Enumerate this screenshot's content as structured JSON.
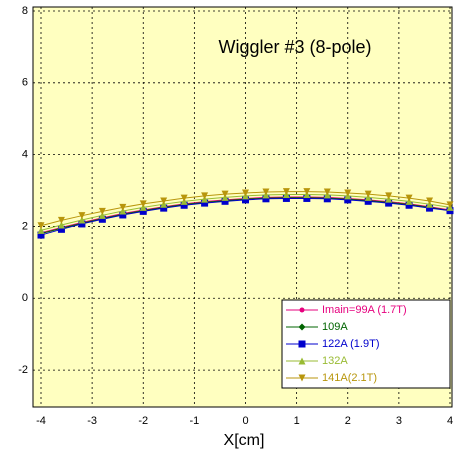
{
  "chart_data": {
    "type": "line",
    "title": "Wiggler #3 (8-pole)",
    "x_label": "X[cm]",
    "x": [
      -4,
      -3.6,
      -3.2,
      -2.8,
      -2.4,
      -2,
      -1.6,
      -1.2,
      -0.8,
      -0.4,
      0,
      0.4,
      0.8,
      1.2,
      1.6,
      2,
      2.4,
      2.8,
      3.2,
      3.6,
      4
    ],
    "xlim": [
      -4,
      4
    ],
    "xticks": [
      -4,
      -3,
      -2,
      -1,
      0,
      1,
      2,
      3,
      4
    ],
    "ylim": [
      -3,
      8
    ],
    "yticks": [
      -2,
      0,
      2,
      4,
      6,
      8
    ],
    "grid": true,
    "legend": "lower right",
    "series": [
      {
        "name": "Imain=99A (1.7T)",
        "color": "#e6007e",
        "marker": "circle",
        "values": [
          1.82,
          1.97,
          2.11,
          2.24,
          2.36,
          2.46,
          2.55,
          2.63,
          2.69,
          2.74,
          2.78,
          2.81,
          2.82,
          2.82,
          2.81,
          2.78,
          2.74,
          2.69,
          2.63,
          2.55,
          2.46
        ]
      },
      {
        "name": "109A",
        "color": "#006400",
        "marker": "diamond",
        "values": [
          1.8,
          1.95,
          2.09,
          2.22,
          2.34,
          2.44,
          2.53,
          2.61,
          2.67,
          2.72,
          2.76,
          2.79,
          2.8,
          2.8,
          2.79,
          2.76,
          2.72,
          2.67,
          2.61,
          2.53,
          2.44
        ]
      },
      {
        "name": "122A (1.9T)",
        "color": "#0000cc",
        "marker": "square",
        "values": [
          1.76,
          1.92,
          2.07,
          2.2,
          2.32,
          2.42,
          2.51,
          2.59,
          2.65,
          2.7,
          2.74,
          2.77,
          2.78,
          2.78,
          2.77,
          2.74,
          2.7,
          2.65,
          2.59,
          2.51,
          2.44
        ]
      },
      {
        "name": "132A",
        "color": "#99bb33",
        "marker": "triangle-up",
        "values": [
          1.89,
          2.04,
          2.18,
          2.31,
          2.43,
          2.53,
          2.62,
          2.7,
          2.76,
          2.81,
          2.85,
          2.88,
          2.89,
          2.89,
          2.88,
          2.85,
          2.81,
          2.76,
          2.7,
          2.62,
          2.53
        ]
      },
      {
        "name": "141A(2.1T)",
        "color": "#b8960c",
        "marker": "triangle-down",
        "values": [
          2.02,
          2.17,
          2.3,
          2.42,
          2.53,
          2.63,
          2.71,
          2.79,
          2.85,
          2.9,
          2.93,
          2.96,
          2.97,
          2.97,
          2.96,
          2.93,
          2.9,
          2.85,
          2.79,
          2.71,
          2.6
        ]
      }
    ]
  }
}
